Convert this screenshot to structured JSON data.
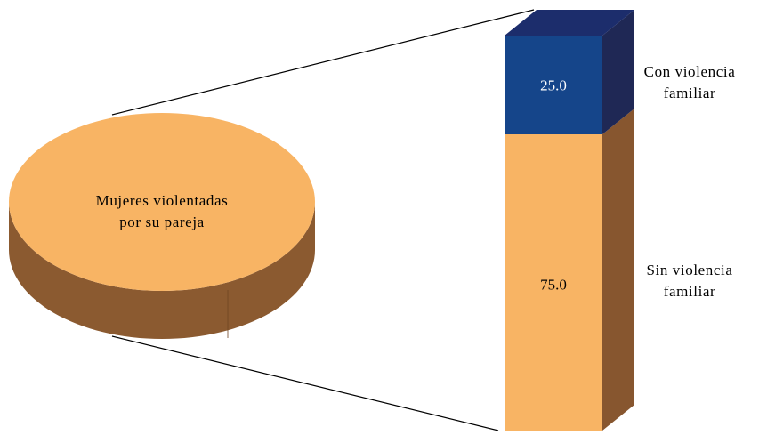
{
  "chart_data": {
    "type": "pie-of-bar",
    "pie": {
      "label_lines": [
        "Mujeres violentadas",
        "por su pareja"
      ]
    },
    "bar": {
      "unit": "percent",
      "segments": [
        {
          "name_lines": [
            "Sin violencia",
            "familiar"
          ],
          "value": 75.0,
          "value_label": "75.0"
        },
        {
          "name_lines": [
            "Con violencia",
            "familiar"
          ],
          "value": 25.0,
          "value_label": "25.0"
        }
      ]
    }
  },
  "colors": {
    "pie_top": "#F8B464",
    "pie_side": "#8B5A30",
    "bar_low_front": "#F8B464",
    "bar_low_side": "#87562F",
    "bar_high_front": "#15458A",
    "bar_high_side": "#1F2855",
    "bar_top": "#1C2D6C",
    "value_text_light": "#FFFFFF",
    "value_text_dark": "#000000"
  }
}
